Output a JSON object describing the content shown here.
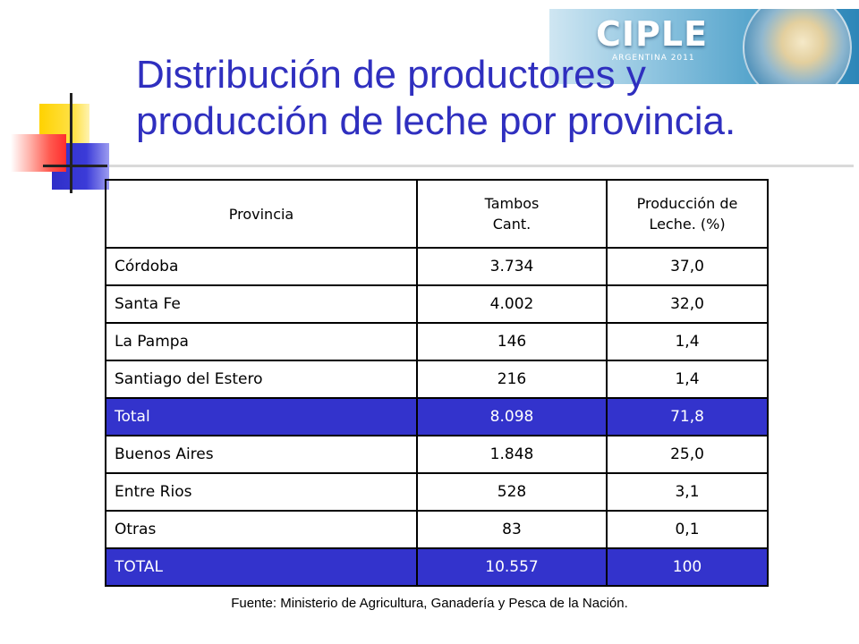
{
  "title": {
    "line1": "Distribución de productores y",
    "line2": "producción de leche por provincia."
  },
  "logo": {
    "brand": "CIPLE",
    "subtitle": "ARGENTINA 2011"
  },
  "table": {
    "headers": {
      "provincia": "Provincia",
      "tambos_line1": "Tambos",
      "tambos_line2": "Cant.",
      "produccion_line1": "Producción de",
      "produccion_line2": "Leche. (%)"
    },
    "rows": [
      {
        "provincia": "Córdoba",
        "tambos": "3.734",
        "produccion": "37,0"
      },
      {
        "provincia": "Santa Fe",
        "tambos": "4.002",
        "produccion": "32,0"
      },
      {
        "provincia": "La Pampa",
        "tambos": "146",
        "produccion": "1,4"
      },
      {
        "provincia": "Santiago del Estero",
        "tambos": "216",
        "produccion": "1,4"
      },
      {
        "provincia": "Total",
        "tambos": "8.098",
        "produccion": "71,8"
      },
      {
        "provincia": "Buenos Aires",
        "tambos": "1.848",
        "produccion": "25,0"
      },
      {
        "provincia": "Entre Rios",
        "tambos": "528",
        "produccion": "3,1"
      },
      {
        "provincia": "Otras",
        "tambos": "83",
        "produccion": "0,1"
      },
      {
        "provincia": "TOTAL",
        "tambos": "10.557",
        "produccion": "100"
      }
    ]
  },
  "source": "Fuente: Ministerio de Agricultura, Ganadería y Pesca de la Nación.",
  "colors": {
    "title": "#2f2fbf",
    "total_row_bg": "#3333cc",
    "accent_yellow": "#ffd200",
    "accent_red": "#ff2d2d"
  }
}
